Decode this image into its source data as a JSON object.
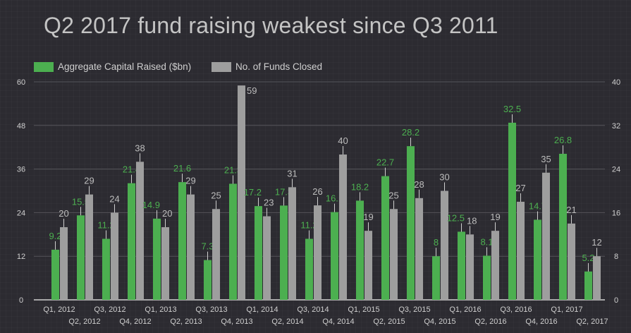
{
  "chart_data": {
    "type": "bar",
    "title": "Q2 2017 fund raising weakest since Q3 2011",
    "categories": [
      "Q1, 2012",
      "Q2, 2012",
      "Q3, 2012",
      "Q4, 2012",
      "Q1, 2013",
      "Q2, 2013",
      "Q3, 2013",
      "Q4, 2013",
      "Q1, 2014",
      "Q2, 2014",
      "Q3, 2014",
      "Q4, 2014",
      "Q1, 2015",
      "Q2, 2015",
      "Q3, 2015",
      "Q4, 2015",
      "Q1, 2016",
      "Q2, 2016",
      "Q3, 2016",
      "Q4, 2016",
      "Q1, 2017",
      "Q2, 2017"
    ],
    "series": [
      {
        "name": "Aggregate Capital Raised ($bn)",
        "color": "#4caf50",
        "axis": "right",
        "values": [
          9.2,
          15.5,
          11.2,
          21.4,
          14.9,
          21.6,
          7.3,
          21.3,
          17.2,
          17.3,
          11.2,
          16.1,
          18.2,
          22.7,
          28.2,
          8,
          12.5,
          8.1,
          32.5,
          14.7,
          26.8,
          5.2
        ]
      },
      {
        "name": "No. of Funds Closed",
        "color": "#9e9e9e",
        "axis": "left",
        "values": [
          20,
          29,
          24,
          38,
          20,
          29,
          25,
          59,
          23,
          31,
          26,
          40,
          19,
          25,
          28,
          30,
          18,
          19,
          27,
          35,
          21,
          12
        ]
      }
    ],
    "left_axis": {
      "ylim": [
        0,
        60
      ],
      "ticks": [
        "0",
        "12",
        "24",
        "36",
        "48",
        "60"
      ]
    },
    "right_axis": {
      "ylim": [
        0,
        40
      ],
      "ticks": [
        "0",
        "8",
        "16",
        "24",
        "32",
        "40"
      ]
    },
    "grid": true,
    "legend": "top-left"
  }
}
